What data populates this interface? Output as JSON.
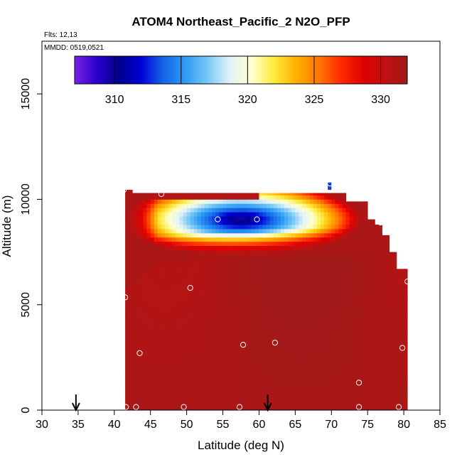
{
  "chart_data": {
    "type": "heatmap",
    "title": "ATOM4 Northeast_Pacific_2 N2O_PFP",
    "flights_label": "Flts: 12,13",
    "dates_label": "MMDD: 0519,0521",
    "xlabel": "Latitude (deg N)",
    "ylabel": "Altitude (m)",
    "xlim": [
      30,
      85
    ],
    "ylim": [
      0,
      17500
    ],
    "x_ticks": [
      "30",
      "35",
      "40",
      "45",
      "50",
      "55",
      "60",
      "65",
      "70",
      "75",
      "80",
      "85"
    ],
    "y_ticks": [
      "0",
      "5000",
      "10000",
      "15000"
    ],
    "colorbar": {
      "range": [
        307,
        332
      ],
      "ticks": [
        "310",
        "315",
        "320",
        "325",
        "330"
      ],
      "placement": "top",
      "colors": [
        "#7a22e6",
        "#2a00cc",
        "#00008c",
        "#0000d8",
        "#1565e6",
        "#2e9bf5",
        "#78c8f5",
        "#e2f2f8",
        "#ffffd0",
        "#ffea3a",
        "#ffb000",
        "#ff7800",
        "#ff2a00",
        "#e00000",
        "#c01010",
        "#a01a1a"
      ]
    },
    "field": {
      "base_value": 331.5,
      "columns": [
        {
          "lat": 41.5,
          "top": 10450
        },
        {
          "lat": 42.5,
          "top": 10300
        },
        {
          "lat": 70.0,
          "top": 10300
        },
        {
          "lat": 71.5,
          "top": 10300
        },
        {
          "lat": 72.0,
          "top": 9900
        },
        {
          "lat": 74.0,
          "top": 9900
        },
        {
          "lat": 75.0,
          "top": 9050
        },
        {
          "lat": 76.0,
          "top": 8800
        },
        {
          "lat": 77.0,
          "top": 8300
        },
        {
          "lat": 78.0,
          "top": 7500
        },
        {
          "lat": 79.0,
          "top": 6700
        },
        {
          "lat": 80.5,
          "top": 6400
        },
        {
          "lat": 80.6,
          "top": 6400
        }
      ],
      "depletion_core": {
        "lat": 57.5,
        "alt": 9050,
        "value": 309
      },
      "lower_boundary_alt": [
        {
          "lat": 42,
          "alt": 5900
        },
        {
          "lat": 46,
          "alt": 7000
        },
        {
          "lat": 55,
          "alt": 7200
        },
        {
          "lat": 65,
          "alt": 7300
        },
        {
          "lat": 75,
          "alt": 7400
        }
      ],
      "isolated_cell": {
        "lat_min": 69.5,
        "lat_max": 70.0,
        "alt_min": 10450,
        "alt_max": 10800,
        "value": 313
      }
    },
    "samples": [
      {
        "lat": 41.3,
        "alt": 10450
      },
      {
        "lat": 46.5,
        "alt": 10250
      },
      {
        "lat": 54.3,
        "alt": 9050
      },
      {
        "lat": 59.7,
        "alt": 9050
      },
      {
        "lat": 69.8,
        "alt": 10750
      },
      {
        "lat": 76.8,
        "alt": 8900
      },
      {
        "lat": 80.5,
        "alt": 6100
      },
      {
        "lat": 50.5,
        "alt": 5800
      },
      {
        "lat": 41.5,
        "alt": 5350
      },
      {
        "lat": 43.5,
        "alt": 2700
      },
      {
        "lat": 57.8,
        "alt": 3100
      },
      {
        "lat": 62.2,
        "alt": 3200
      },
      {
        "lat": 79.8,
        "alt": 2950
      },
      {
        "lat": 73.8,
        "alt": 1300
      },
      {
        "lat": 41.6,
        "alt": 150
      },
      {
        "lat": 43.0,
        "alt": 150
      },
      {
        "lat": 49.6,
        "alt": 150
      },
      {
        "lat": 57.3,
        "alt": 150
      },
      {
        "lat": 73.8,
        "alt": 150
      },
      {
        "lat": 79.3,
        "alt": 150
      }
    ],
    "arrows_lat": [
      34.7,
      61.2
    ],
    "grid": false,
    "legend": "colorbar top"
  }
}
